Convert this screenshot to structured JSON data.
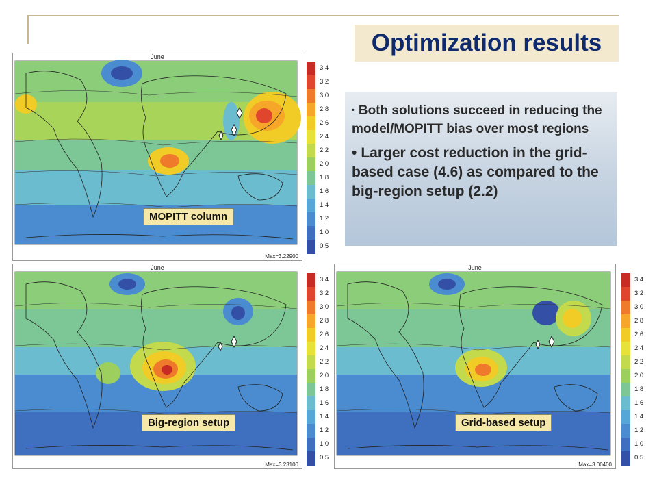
{
  "slide": {
    "title": "Optimization results",
    "bullets": [
      "Both solutions succeed in reducing the model/MOPITT bias over most regions",
      "Larger cost reduction in the grid-based case (4.6) as compared to the big-region setup (2.2)"
    ],
    "bullet_glyph": "•"
  },
  "panels": {
    "mopitt": {
      "month": "June",
      "max_text": "Max=3.22900",
      "label": "MOPITT column"
    },
    "big_region": {
      "month": "June",
      "max_text": "Max=3.23100",
      "label": "Big-region setup"
    },
    "grid_based": {
      "month": "June",
      "max_text": "Max=3.00400",
      "label": "Grid-based setup"
    }
  },
  "colorbar": {
    "ticks": [
      "3.4",
      "3.2",
      "3.0",
      "2.8",
      "2.6",
      "2.4",
      "2.2",
      "2.0",
      "1.8",
      "1.6",
      "1.4",
      "1.2",
      "1.0",
      "0.5"
    ],
    "colors": [
      "#c62c24",
      "#e0462e",
      "#f07a2c",
      "#f6a628",
      "#f2cc26",
      "#e6e23a",
      "#c3da4c",
      "#9ccf5e",
      "#7dc796",
      "#6cbccf",
      "#56a6d8",
      "#4a8ccf",
      "#3f70bf",
      "#3450a6"
    ]
  }
}
